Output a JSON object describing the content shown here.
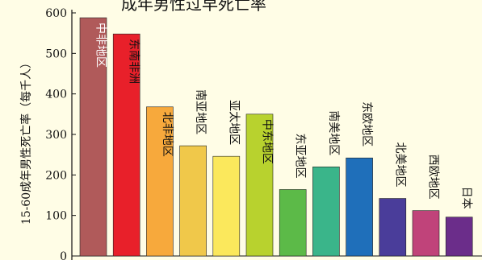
{
  "chart_data": {
    "type": "bar",
    "title": "成年男性过早死亡率",
    "ylabel": "15-60成年男性死亡率（每千人）",
    "xlabel": "",
    "ylim": [
      0,
      600
    ],
    "yticks": [
      0,
      100,
      200,
      300,
      400,
      500,
      600
    ],
    "grid": false,
    "legend": "none",
    "categories": [
      "中非地区",
      "东南非洲",
      "北非地区",
      "南亚地区",
      "亚太地区",
      "中东地区",
      "东亚地区",
      "南美地区",
      "东欧地区",
      "北美地区",
      "西欧地区",
      "日本"
    ],
    "values": [
      588,
      548,
      368,
      272,
      246,
      350,
      164,
      220,
      242,
      142,
      112,
      96
    ],
    "colors": [
      "#b05a5a",
      "#e8202a",
      "#f7a93c",
      "#f0c84a",
      "#fbe85c",
      "#b8d22e",
      "#5cba48",
      "#3ab58a",
      "#1f6fba",
      "#4a3d9a",
      "#c0437a",
      "#6b2d8a"
    ],
    "label_inside": [
      true,
      true,
      true,
      false,
      false,
      true,
      false,
      false,
      false,
      false,
      false,
      false
    ],
    "label_colors": [
      "#ffffff",
      "#111111",
      "#111111",
      "#111111",
      "#111111",
      "#111111",
      "#111111",
      "#111111",
      "#111111",
      "#111111",
      "#111111",
      "#111111"
    ]
  }
}
